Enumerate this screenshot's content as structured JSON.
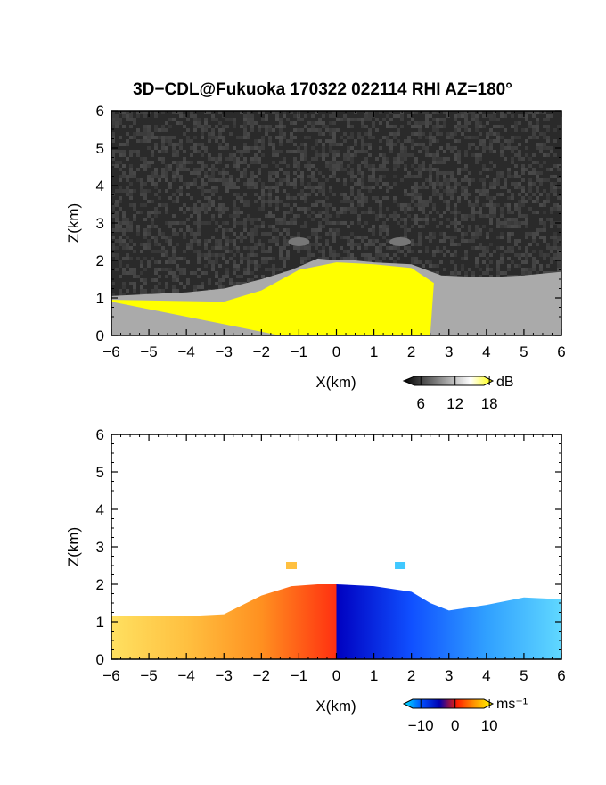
{
  "chart_data": [
    {
      "type": "heatmap",
      "title": "3D−CDL@Fukuoka 170322 022114 RHI AZ=180°",
      "xlabel": "X(km)",
      "ylabel": "Z(km)",
      "xlim": [
        -6,
        6
      ],
      "ylim": [
        0,
        6
      ],
      "x_ticks": [
        "−6",
        "−5",
        "−4",
        "−3",
        "−2",
        "−1",
        "0",
        "1",
        "2",
        "3",
        "4",
        "5",
        "6"
      ],
      "y_ticks": [
        "0",
        "1",
        "2",
        "3",
        "4",
        "5",
        "6"
      ],
      "variable": "intensity",
      "colorbar": {
        "unit": "dB",
        "ticks": [
          "6",
          "12",
          "18"
        ],
        "values": [
          6,
          12,
          18
        ],
        "colors": [
          "#000000",
          "#555555",
          "#aaaaaa",
          "#ffffff",
          "#ffff00"
        ]
      },
      "background": "#2a2a2a",
      "fill_color": "#ffff00",
      "echo_top_km": [
        [
          -6,
          1.05
        ],
        [
          -5,
          1.1
        ],
        [
          -4,
          1.15
        ],
        [
          -3,
          1.25
        ],
        [
          -2,
          1.5
        ],
        [
          -1.2,
          1.75
        ],
        [
          -0.5,
          2.05
        ],
        [
          0,
          2.0
        ],
        [
          0.5,
          2.0
        ],
        [
          1,
          1.95
        ],
        [
          2,
          1.9
        ],
        [
          2.8,
          1.6
        ],
        [
          4,
          1.55
        ],
        [
          5,
          1.6
        ],
        [
          6,
          1.7
        ]
      ],
      "high_echo_region_km": [
        [
          -6,
          0.95
        ],
        [
          -3,
          0.9
        ],
        [
          -2,
          1.2
        ],
        [
          -1,
          1.75
        ],
        [
          0,
          1.95
        ],
        [
          1,
          1.9
        ],
        [
          2,
          1.8
        ],
        [
          2.6,
          1.4
        ],
        [
          2.5,
          0
        ],
        [
          -1.5,
          0
        ],
        [
          -6,
          0.9
        ]
      ],
      "isolated_echoes_km": [
        {
          "x": -1.0,
          "z": 2.5
        },
        {
          "x": 1.7,
          "z": 2.5
        }
      ]
    },
    {
      "type": "heatmap",
      "xlabel": "X(km)",
      "ylabel": "Z(km)",
      "xlim": [
        -6,
        6
      ],
      "ylim": [
        0,
        6
      ],
      "x_ticks": [
        "−6",
        "−5",
        "−4",
        "−3",
        "−2",
        "−1",
        "0",
        "1",
        "2",
        "3",
        "4",
        "5",
        "6"
      ],
      "y_ticks": [
        "0",
        "1",
        "2",
        "3",
        "4",
        "5",
        "6"
      ],
      "variable": "doppler_velocity",
      "colorbar": {
        "unit": "ms⁻¹",
        "ticks": [
          "−10",
          "0",
          "10"
        ],
        "values": [
          -10,
          0,
          10
        ],
        "colors": [
          "#00e5ff",
          "#0050ff",
          "#0000b0",
          "#ff2000",
          "#ff9900",
          "#ffff00"
        ]
      },
      "background": "#ffffff",
      "negative_region": {
        "x_range": [
          -6,
          0
        ],
        "colors": [
          "#ffe060",
          "#ffc040",
          "#ff9020",
          "#ff3010"
        ],
        "echo_top_km": [
          [
            -6,
            1.15
          ],
          [
            -5,
            1.15
          ],
          [
            -4,
            1.15
          ],
          [
            -3,
            1.2
          ],
          [
            -2,
            1.7
          ],
          [
            -1.2,
            1.95
          ],
          [
            -0.5,
            2.0
          ],
          [
            0,
            2.0
          ]
        ]
      },
      "positive_region": {
        "x_range": [
          0,
          6
        ],
        "colors": [
          "#0000c0",
          "#1050ff",
          "#30a0ff",
          "#60d8ff"
        ],
        "echo_top_km": [
          [
            0,
            2.0
          ],
          [
            1,
            1.95
          ],
          [
            2,
            1.8
          ],
          [
            2.5,
            1.5
          ],
          [
            3,
            1.3
          ],
          [
            4,
            1.45
          ],
          [
            5,
            1.65
          ],
          [
            6,
            1.6
          ]
        ]
      },
      "isolated_echoes_km": [
        {
          "x": -1.2,
          "z": 2.5,
          "color": "#ffc040"
        },
        {
          "x": 1.7,
          "z": 2.5,
          "color": "#40c8ff"
        }
      ]
    }
  ]
}
